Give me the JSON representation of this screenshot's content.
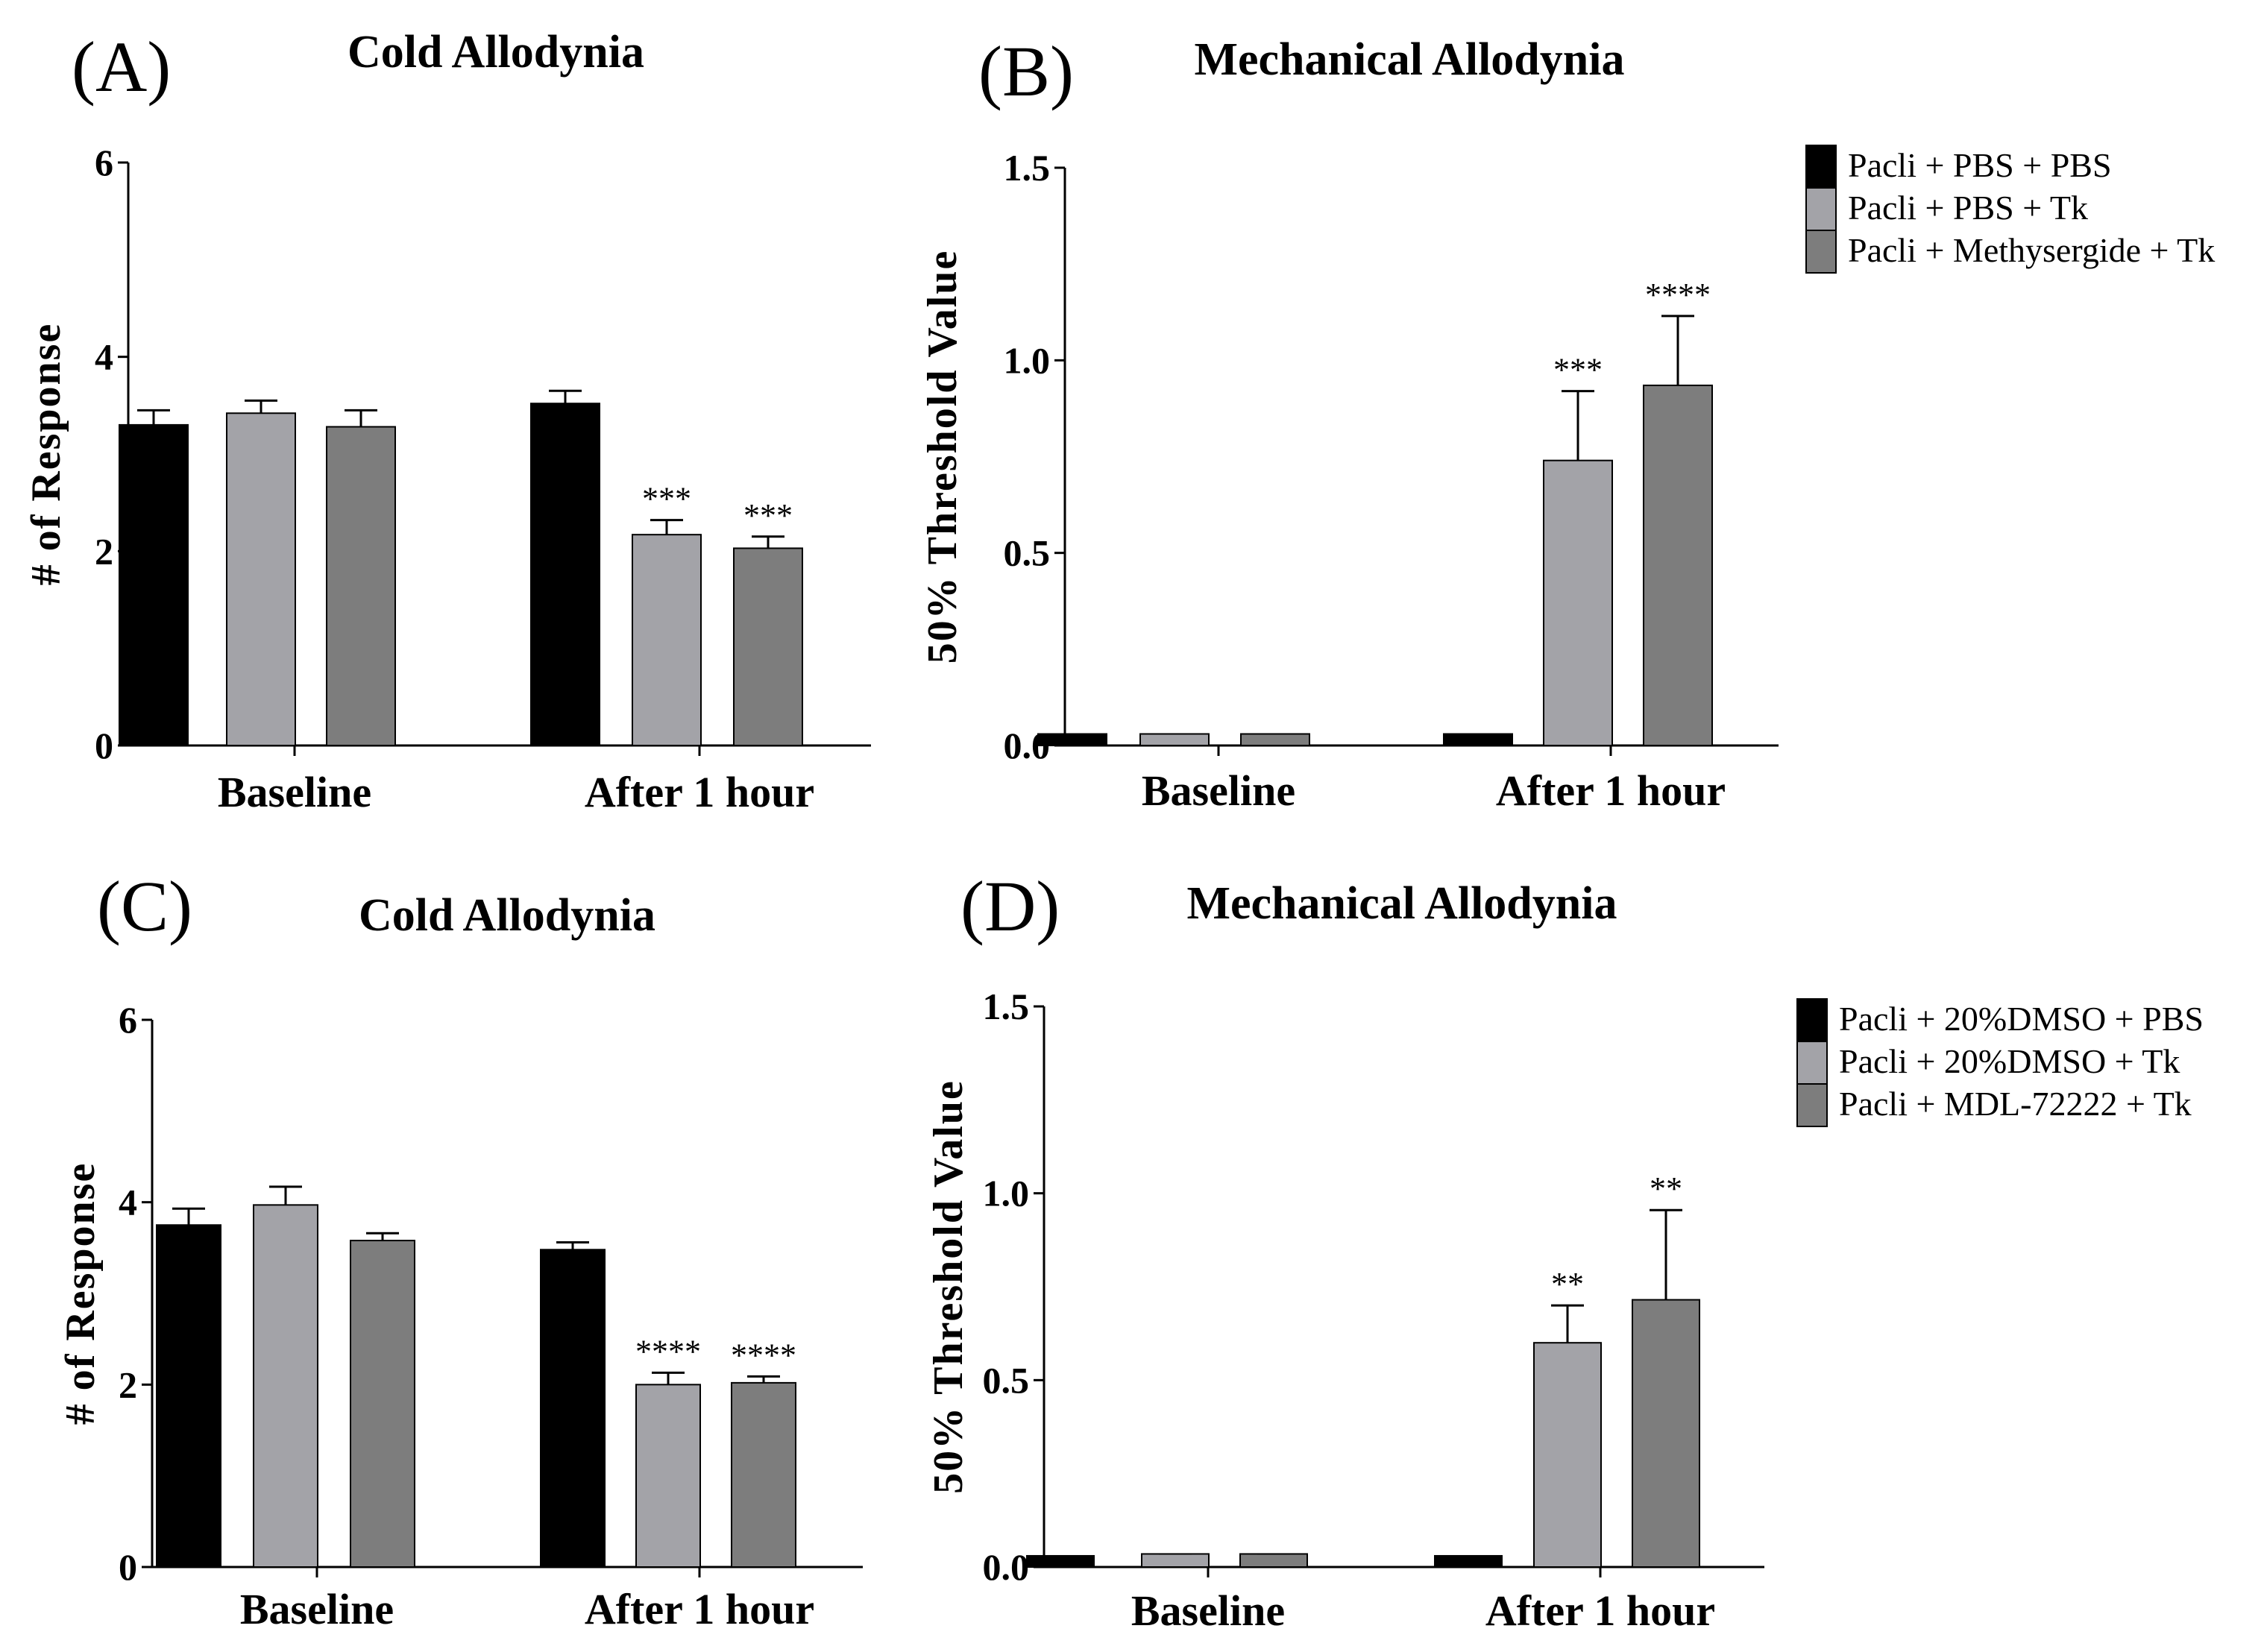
{
  "colors": {
    "black_bar": "#000000",
    "light_grey_bar": "#a3a3a8",
    "dark_grey_bar": "#7d7d7d"
  },
  "chart_data": [
    {
      "panel": "(A)",
      "type": "bar",
      "title": "Cold Allodynia",
      "xlabel": "",
      "ylabel": "# of Response",
      "ylim": [
        0,
        6
      ],
      "yticks": [
        0,
        2,
        4,
        6
      ],
      "ytick_labels": [
        "0",
        "2",
        "4",
        "6"
      ],
      "categories": [
        "Baseline",
        "After 1 hour"
      ],
      "legend": null,
      "series": [
        {
          "name": "Pacli + PBS + PBS",
          "color": "#000000",
          "values": [
            3.3,
            3.52
          ],
          "errors": [
            0.15,
            0.13
          ],
          "sig": [
            "",
            ""
          ]
        },
        {
          "name": "Pacli + PBS + Tk",
          "color": "#a3a3a8",
          "values": [
            3.42,
            2.17
          ],
          "errors": [
            0.13,
            0.15
          ],
          "sig": [
            "",
            "***"
          ]
        },
        {
          "name": "Pacli + Methysergide + Tk",
          "color": "#7d7d7d",
          "values": [
            3.28,
            2.03
          ],
          "errors": [
            0.17,
            0.12
          ],
          "sig": [
            "",
            "***"
          ]
        }
      ]
    },
    {
      "panel": "(B)",
      "type": "bar",
      "title": "Mechanical Allodynia",
      "xlabel": "",
      "ylabel": "50% Threshold Value",
      "ylim": [
        0,
        1.5
      ],
      "yticks": [
        0,
        0.5,
        1.0,
        1.5
      ],
      "ytick_labels": [
        "0.0",
        "0.5",
        "1.0",
        "1.5"
      ],
      "categories": [
        "Baseline",
        "After 1 hour"
      ],
      "legend": [
        "Pacli + PBS + PBS",
        "Pacli + PBS + Tk",
        "Pacli + Methysergide + Tk"
      ],
      "series": [
        {
          "name": "Pacli + PBS + PBS",
          "color": "#000000",
          "values": [
            0.03,
            0.03
          ],
          "errors": [
            0.003,
            0.003
          ],
          "sig": [
            "",
            ""
          ]
        },
        {
          "name": "Pacli + PBS + Tk",
          "color": "#a3a3a8",
          "values": [
            0.03,
            0.74
          ],
          "errors": [
            0.003,
            0.18
          ],
          "sig": [
            "",
            "***"
          ]
        },
        {
          "name": "Pacli + Methysergide + Tk",
          "color": "#7d7d7d",
          "values": [
            0.03,
            0.935
          ],
          "errors": [
            0.002,
            0.18
          ],
          "sig": [
            "",
            "****"
          ]
        }
      ]
    },
    {
      "panel": "(C)",
      "type": "bar",
      "title": "Cold Allodynia",
      "xlabel": "",
      "ylabel": "# of Response",
      "ylim": [
        0,
        6
      ],
      "yticks": [
        0,
        2,
        4,
        6
      ],
      "ytick_labels": [
        "0",
        "2",
        "4",
        "6"
      ],
      "categories": [
        "Baseline",
        "After 1 hour"
      ],
      "legend": null,
      "series": [
        {
          "name": "Pacli + 20%DMSO + PBS",
          "color": "#000000",
          "values": [
            3.75,
            3.48
          ],
          "errors": [
            0.18,
            0.08
          ],
          "sig": [
            "",
            ""
          ]
        },
        {
          "name": "Pacli + 20%DMSO + Tk",
          "color": "#a3a3a8",
          "values": [
            3.97,
            2.0
          ],
          "errors": [
            0.2,
            0.13
          ],
          "sig": [
            "",
            "****"
          ]
        },
        {
          "name": "Pacli + MDL-72222 + Tk",
          "color": "#7d7d7d",
          "values": [
            3.58,
            2.02
          ],
          "errors": [
            0.08,
            0.07
          ],
          "sig": [
            "",
            "****"
          ]
        }
      ]
    },
    {
      "panel": "(D)",
      "type": "bar",
      "title": "Mechanical Allodynia",
      "xlabel": "",
      "ylabel": "50% Threshold Value",
      "ylim": [
        0,
        1.5
      ],
      "yticks": [
        0,
        0.5,
        1.0,
        1.5
      ],
      "ytick_labels": [
        "0.0",
        "0.5",
        "1.0",
        "1.5"
      ],
      "categories": [
        "Baseline",
        "After 1 hour"
      ],
      "legend": [
        "Pacli + 20%DMSO + PBS",
        "Pacli + 20%DMSO + Tk",
        "Pacli + MDL-72222 + Tk"
      ],
      "series": [
        {
          "name": "Pacli + 20%DMSO + PBS",
          "color": "#000000",
          "values": [
            0.03,
            0.03
          ],
          "errors": [
            0.002,
            0.002
          ],
          "sig": [
            "",
            ""
          ]
        },
        {
          "name": "Pacli + 20%DMSO + Tk",
          "color": "#a3a3a8",
          "values": [
            0.035,
            0.6
          ],
          "errors": [
            0.003,
            0.1
          ],
          "sig": [
            "",
            "**"
          ]
        },
        {
          "name": "Pacli + MDL-72222 + Tk",
          "color": "#7d7d7d",
          "values": [
            0.035,
            0.715
          ],
          "errors": [
            0.003,
            0.24
          ],
          "sig": [
            "",
            "**"
          ]
        }
      ]
    }
  ]
}
